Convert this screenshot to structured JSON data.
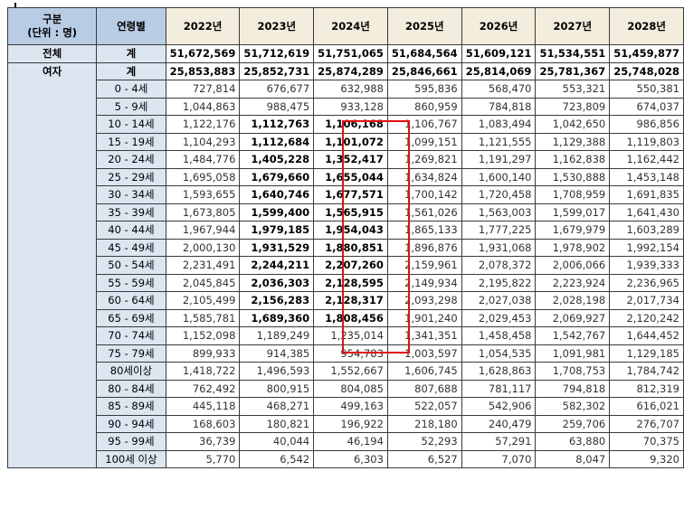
{
  "header": {
    "category_label": "구분",
    "unit_label": "(단위 : 명)",
    "age_label": "연령별",
    "years": [
      "2022년",
      "2023년",
      "2024년",
      "2025년",
      "2026년",
      "2027년",
      "2028년"
    ]
  },
  "total": {
    "group": "전체",
    "label": "계",
    "values": [
      "51,672,569",
      "51,712,619",
      "51,751,065",
      "51,684,564",
      "51,609,121",
      "51,534,551",
      "51,459,877"
    ]
  },
  "female": {
    "group": "여자",
    "sum_label": "계",
    "sum_values": [
      "25,853,883",
      "25,852,731",
      "25,874,289",
      "25,846,661",
      "25,814,069",
      "25,781,367",
      "25,748,028"
    ],
    "rows": [
      {
        "age": "0 - 4세",
        "values": [
          "727,814",
          "676,677",
          "632,988",
          "595,836",
          "568,470",
          "553,321",
          "550,381"
        ],
        "bold": false
      },
      {
        "age": "5 - 9세",
        "values": [
          "1,044,863",
          "988,475",
          "933,128",
          "860,959",
          "784,818",
          "723,809",
          "674,037"
        ],
        "bold": false
      },
      {
        "age": "10 - 14세",
        "values": [
          "1,122,176",
          "1,112,763",
          "1,106,168",
          "1,106,767",
          "1,083,494",
          "1,042,650",
          "986,856"
        ],
        "bold": true
      },
      {
        "age": "15 - 19세",
        "values": [
          "1,104,293",
          "1,112,684",
          "1,101,072",
          "1,099,151",
          "1,121,555",
          "1,129,388",
          "1,119,803"
        ],
        "bold": true
      },
      {
        "age": "20 - 24세",
        "values": [
          "1,484,776",
          "1,405,228",
          "1,352,417",
          "1,269,821",
          "1,191,297",
          "1,162,838",
          "1,162,442"
        ],
        "bold": true
      },
      {
        "age": "25 - 29세",
        "values": [
          "1,695,058",
          "1,679,660",
          "1,655,044",
          "1,634,824",
          "1,600,140",
          "1,530,888",
          "1,453,148"
        ],
        "bold": true
      },
      {
        "age": "30 - 34세",
        "values": [
          "1,593,655",
          "1,640,746",
          "1,677,571",
          "1,700,142",
          "1,720,458",
          "1,708,959",
          "1,691,835"
        ],
        "bold": true
      },
      {
        "age": "35 - 39세",
        "values": [
          "1,673,805",
          "1,599,400",
          "1,565,915",
          "1,561,026",
          "1,563,003",
          "1,599,017",
          "1,641,430"
        ],
        "bold": true
      },
      {
        "age": "40 - 44세",
        "values": [
          "1,967,944",
          "1,979,185",
          "1,954,043",
          "1,865,133",
          "1,777,225",
          "1,679,979",
          "1,603,289"
        ],
        "bold": true
      },
      {
        "age": "45 - 49세",
        "values": [
          "2,000,130",
          "1,931,529",
          "1,880,851",
          "1,896,876",
          "1,931,068",
          "1,978,902",
          "1,992,154"
        ],
        "bold": true
      },
      {
        "age": "50 - 54세",
        "values": [
          "2,231,491",
          "2,244,211",
          "2,207,260",
          "2,159,961",
          "2,078,372",
          "2,006,066",
          "1,939,333"
        ],
        "bold": true
      },
      {
        "age": "55 - 59세",
        "values": [
          "2,045,845",
          "2,036,303",
          "2,128,595",
          "2,149,934",
          "2,195,822",
          "2,223,924",
          "2,236,965"
        ],
        "bold": true
      },
      {
        "age": "60 - 64세",
        "values": [
          "2,105,499",
          "2,156,283",
          "2,128,317",
          "2,093,298",
          "2,027,038",
          "2,028,198",
          "2,017,734"
        ],
        "bold": true
      },
      {
        "age": "65 - 69세",
        "values": [
          "1,585,781",
          "1,689,360",
          "1,808,456",
          "1,901,240",
          "2,029,453",
          "2,069,927",
          "2,120,242"
        ],
        "bold": true
      },
      {
        "age": "70 - 74세",
        "values": [
          "1,152,098",
          "1,189,249",
          "1,235,014",
          "1,341,351",
          "1,458,458",
          "1,542,767",
          "1,644,452"
        ],
        "bold": false
      },
      {
        "age": "75 - 79세",
        "values": [
          "899,933",
          "914,385",
          "954,783",
          "1,003,597",
          "1,054,535",
          "1,091,981",
          "1,129,185"
        ],
        "bold": false
      },
      {
        "age": "80세이상",
        "values": [
          "1,418,722",
          "1,496,593",
          "1,552,667",
          "1,606,745",
          "1,628,863",
          "1,708,753",
          "1,784,742"
        ],
        "bold": false
      },
      {
        "age": "80 - 84세",
        "values": [
          "762,492",
          "800,915",
          "804,085",
          "807,688",
          "781,117",
          "794,818",
          "812,319"
        ],
        "bold": false
      },
      {
        "age": "85 - 89세",
        "values": [
          "445,118",
          "468,271",
          "499,163",
          "522,057",
          "542,906",
          "582,302",
          "616,021"
        ],
        "bold": false
      },
      {
        "age": "90 - 94세",
        "values": [
          "168,603",
          "180,821",
          "196,922",
          "218,180",
          "240,479",
          "259,706",
          "276,707"
        ],
        "bold": false
      },
      {
        "age": "95 - 99세",
        "values": [
          "36,739",
          "40,044",
          "46,194",
          "52,293",
          "57,291",
          "63,880",
          "70,375"
        ],
        "bold": false
      },
      {
        "age": "100세 이상",
        "values": [
          "5,770",
          "6,542",
          "6,303",
          "6,527",
          "7,070",
          "8,047",
          "9,320"
        ],
        "bold": false
      }
    ]
  },
  "highlight": {
    "column": "2024년",
    "from_age": "10 - 14세",
    "to_age": "65 - 69세",
    "color": "#e01010"
  },
  "colors": {
    "header_blue": "#b8cce4",
    "header_year": "#f2eddc",
    "label_bg": "#dce6f1"
  }
}
